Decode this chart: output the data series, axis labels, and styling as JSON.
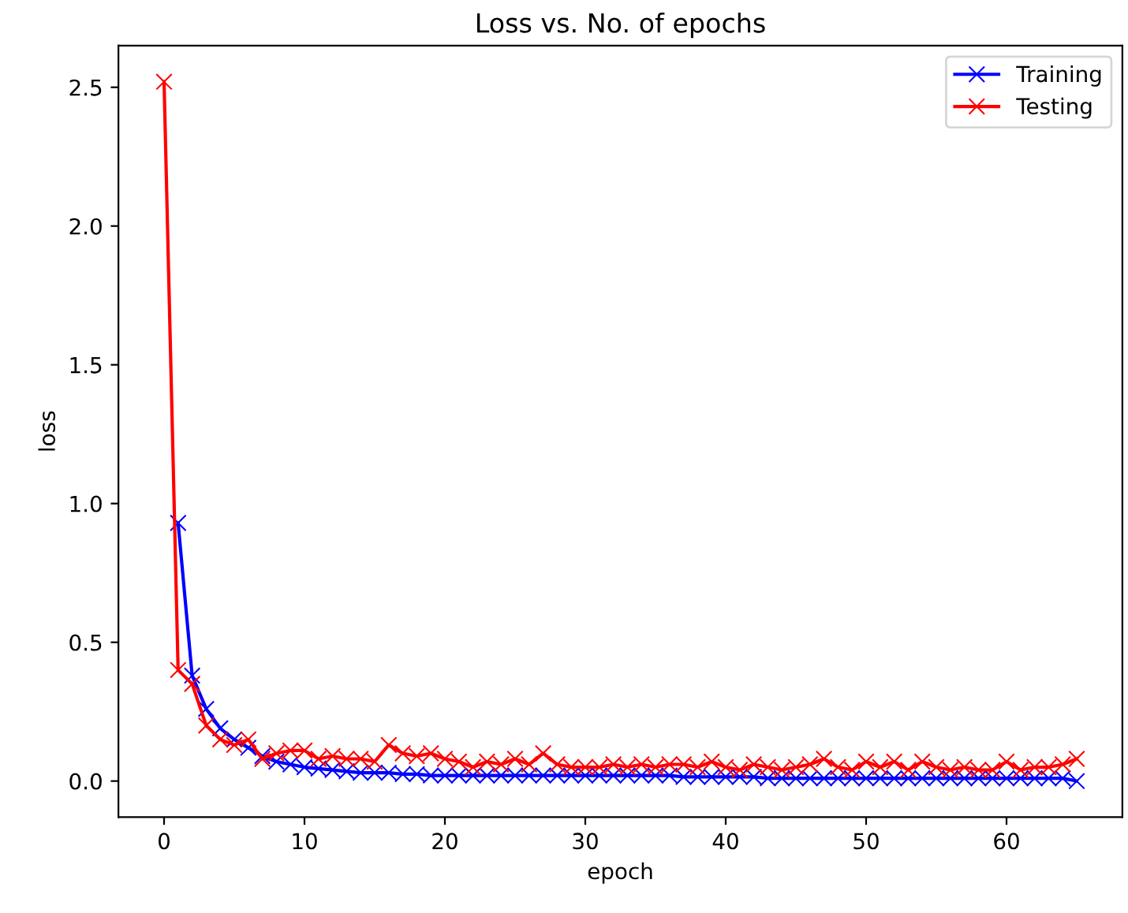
{
  "chart_data": {
    "type": "line",
    "title": "Loss vs. No. of epochs",
    "xlabel": "epoch",
    "ylabel": "loss",
    "series": [
      {
        "name": "Training",
        "color": "#0000ff",
        "x": [
          1,
          2,
          3,
          4,
          5,
          6,
          7,
          8,
          9,
          10,
          11,
          12,
          13,
          14,
          15,
          16,
          17,
          18,
          19,
          20,
          21,
          22,
          23,
          24,
          25,
          26,
          27,
          28,
          29,
          30,
          31,
          32,
          33,
          34,
          35,
          36,
          37,
          38,
          39,
          40,
          41,
          42,
          43,
          44,
          45,
          46,
          47,
          48,
          49,
          50,
          51,
          52,
          53,
          54,
          55,
          56,
          57,
          58,
          59,
          60,
          61,
          62,
          63,
          64,
          65
        ],
        "values": [
          0.93,
          0.38,
          0.26,
          0.19,
          0.15,
          0.12,
          0.09,
          0.07,
          0.06,
          0.05,
          0.045,
          0.04,
          0.035,
          0.03,
          0.03,
          0.03,
          0.025,
          0.025,
          0.02,
          0.02,
          0.02,
          0.02,
          0.02,
          0.02,
          0.02,
          0.02,
          0.02,
          0.02,
          0.02,
          0.02,
          0.02,
          0.02,
          0.02,
          0.02,
          0.02,
          0.02,
          0.015,
          0.015,
          0.015,
          0.015,
          0.015,
          0.015,
          0.01,
          0.01,
          0.01,
          0.01,
          0.01,
          0.01,
          0.01,
          0.01,
          0.01,
          0.01,
          0.01,
          0.01,
          0.01,
          0.01,
          0.01,
          0.01,
          0.01,
          0.01,
          0.01,
          0.01,
          0.01,
          0.01,
          0.0
        ]
      },
      {
        "name": "Testing",
        "color": "#ff0000",
        "x": [
          0,
          1,
          2,
          3,
          4,
          5,
          6,
          7,
          8,
          9,
          10,
          11,
          12,
          13,
          14,
          15,
          16,
          17,
          18,
          19,
          20,
          21,
          22,
          23,
          24,
          25,
          26,
          27,
          28,
          29,
          30,
          31,
          32,
          33,
          34,
          35,
          36,
          37,
          38,
          39,
          40,
          41,
          42,
          43,
          44,
          45,
          46,
          47,
          48,
          49,
          50,
          51,
          52,
          53,
          54,
          55,
          56,
          57,
          58,
          59,
          60,
          61,
          62,
          63,
          64,
          65
        ],
        "values": [
          2.52,
          0.4,
          0.35,
          0.2,
          0.15,
          0.13,
          0.15,
          0.08,
          0.1,
          0.11,
          0.11,
          0.08,
          0.09,
          0.08,
          0.08,
          0.07,
          0.13,
          0.1,
          0.09,
          0.1,
          0.08,
          0.07,
          0.05,
          0.07,
          0.06,
          0.08,
          0.06,
          0.1,
          0.06,
          0.05,
          0.05,
          0.05,
          0.06,
          0.05,
          0.06,
          0.05,
          0.06,
          0.06,
          0.05,
          0.07,
          0.05,
          0.04,
          0.06,
          0.05,
          0.04,
          0.05,
          0.06,
          0.08,
          0.05,
          0.04,
          0.07,
          0.05,
          0.07,
          0.04,
          0.07,
          0.05,
          0.04,
          0.05,
          0.04,
          0.04,
          0.07,
          0.04,
          0.05,
          0.05,
          0.06,
          0.08
        ]
      }
    ],
    "xlim": [
      -3.25,
      68.25
    ],
    "ylim": [
      -0.13,
      2.65
    ],
    "xticks": [
      0,
      10,
      20,
      30,
      40,
      50,
      60
    ],
    "yticks": [
      {
        "value": 0,
        "label": "0.0"
      },
      0.5,
      {
        "value": 1,
        "label": "1.0"
      },
      1.5,
      {
        "value": 2,
        "label": "2.0"
      },
      2.5
    ],
    "marker": "cross",
    "line_style": "solid",
    "legend": "top right",
    "grid": false
  }
}
